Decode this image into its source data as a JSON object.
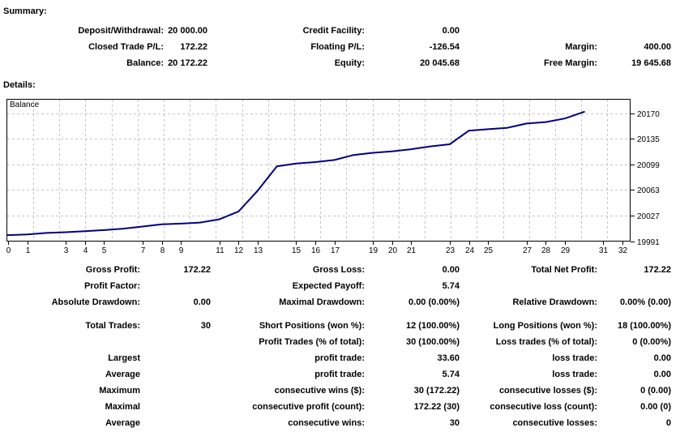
{
  "summary": {
    "title": "Summary:",
    "rows": [
      [
        "Deposit/Withdrawal:",
        "20 000.00",
        "Credit Facility:",
        "0.00",
        "",
        ""
      ],
      [
        "Closed Trade P/L:",
        "172.22",
        "Floating P/L:",
        "-126.54",
        "Margin:",
        "400.00"
      ],
      [
        "Balance:",
        "20 172.22",
        "Equity:",
        "20 045.68",
        "Free Margin:",
        "19 645.68"
      ]
    ]
  },
  "details": {
    "title": "Details:",
    "stats_top": [
      [
        "Gross Profit:",
        "172.22",
        "Gross Loss:",
        "0.00",
        "Total Net Profit:",
        "172.22"
      ],
      [
        "Profit Factor:",
        "",
        "Expected Payoff:",
        "5.74",
        "",
        ""
      ],
      [
        "Absolute Drawdown:",
        "0.00",
        "Maximal Drawdown:",
        "0.00 (0.00%)",
        "Relative Drawdown:",
        "0.00% (0.00)"
      ]
    ],
    "stats_bottom": [
      [
        "Total Trades:",
        "30",
        "Short Positions (won %):",
        "12 (100.00%)",
        "Long Positions (won %):",
        "18 (100.00%)"
      ],
      [
        "",
        "",
        "Profit Trades (% of total):",
        "30 (100.00%)",
        "Loss trades (% of total):",
        "0 (0.00%)"
      ],
      [
        "Largest",
        "",
        "profit trade:",
        "33.60",
        "loss trade:",
        "0.00"
      ],
      [
        "Average",
        "",
        "profit trade:",
        "5.74",
        "loss trade:",
        "0.00"
      ],
      [
        "Maximum",
        "",
        "consecutive wins ($):",
        "30 (172.22)",
        "consecutive losses ($):",
        "0 (0.00)"
      ],
      [
        "Maximal",
        "",
        "consecutive profit (count):",
        "172.22 (30)",
        "consecutive loss (count):",
        "0.00 (0)"
      ],
      [
        "Average",
        "",
        "consecutive wins:",
        "30",
        "consecutive losses:",
        "0"
      ]
    ]
  },
  "chart_data": {
    "type": "line",
    "title": "",
    "legend": "Balance",
    "line_color": "#000080",
    "grid_color": "#c6c6c6",
    "axis_color": "#000000",
    "x": [
      0,
      1,
      2,
      3,
      4,
      5,
      6,
      7,
      8,
      9,
      10,
      11,
      12,
      13,
      14,
      15,
      16,
      17,
      18,
      19,
      20,
      21,
      22,
      23,
      24,
      25,
      26,
      27,
      28,
      29,
      30
    ],
    "values": [
      20000.0,
      20001.0,
      20003.0,
      20004.0,
      20005.5,
      20007.0,
      20009.0,
      20012.0,
      20015.0,
      20016.0,
      20017.5,
      20022.0,
      20033.0,
      20062.0,
      20096.0,
      20100.0,
      20102.0,
      20105.0,
      20112.0,
      20115.0,
      20117.0,
      20120.0,
      20124.0,
      20127.0,
      20146.0,
      20148.0,
      20150.0,
      20156.0,
      20158.0,
      20163.0,
      20172.22
    ],
    "y_ticks": [
      19991,
      20027,
      20063,
      20099,
      20135,
      20170
    ],
    "x_ticks": [
      0,
      1,
      3,
      4,
      5,
      7,
      8,
      9,
      11,
      12,
      13,
      15,
      16,
      17,
      19,
      20,
      21,
      23,
      24,
      25,
      27,
      28,
      29,
      31,
      32
    ],
    "xlim": [
      0,
      32.4
    ],
    "ylim": [
      19991,
      20190
    ],
    "grid": "dashed"
  }
}
